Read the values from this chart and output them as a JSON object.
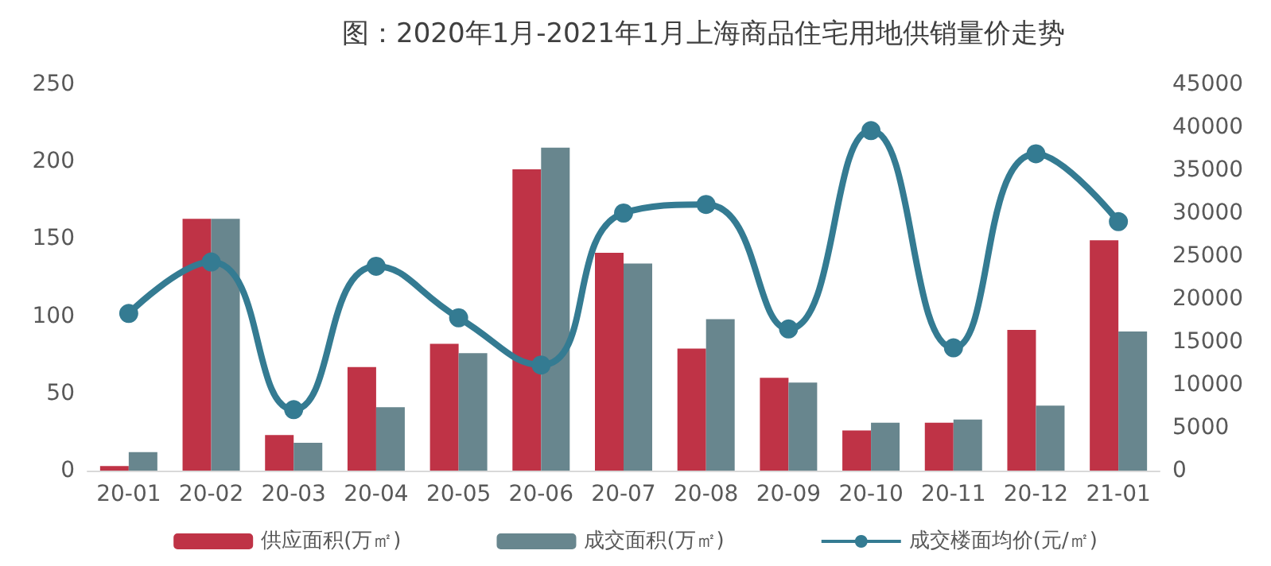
{
  "chart_data": {
    "type": "bar",
    "title": "图：2020年1月-2021年1月上海商品住宅用地供销量价走势",
    "categories": [
      "20-01",
      "20-02",
      "20-03",
      "20-04",
      "20-05",
      "20-06",
      "20-07",
      "20-08",
      "20-09",
      "20-10",
      "20-11",
      "20-12",
      "21-01"
    ],
    "series": [
      {
        "name": "供应面积(万㎡)",
        "color": "#bf3346",
        "values": [
          3,
          163,
          23,
          67,
          82,
          195,
          141,
          79,
          60,
          26,
          31,
          91,
          149
        ]
      },
      {
        "name": "成交面积(万㎡)",
        "color": "#68868e",
        "values": [
          12,
          163,
          18,
          41,
          76,
          209,
          134,
          98,
          57,
          31,
          33,
          42,
          90
        ]
      },
      {
        "name": "成交楼面均价(元/㎡)",
        "type": "line",
        "axis": "y2",
        "color": "#347b92",
        "marker": "circle",
        "values": [
          18300,
          24300,
          7100,
          23800,
          17800,
          12300,
          30000,
          31000,
          16500,
          39600,
          14300,
          36900,
          29000
        ]
      }
    ],
    "ylim": [
      0,
      250
    ],
    "yticks": [
      0,
      50,
      100,
      150,
      200,
      250
    ],
    "y2lim": [
      0,
      45000
    ],
    "y2ticks": [
      0,
      5000,
      10000,
      15000,
      20000,
      25000,
      30000,
      35000,
      40000,
      45000
    ],
    "grid": false,
    "legend": "bottom"
  }
}
